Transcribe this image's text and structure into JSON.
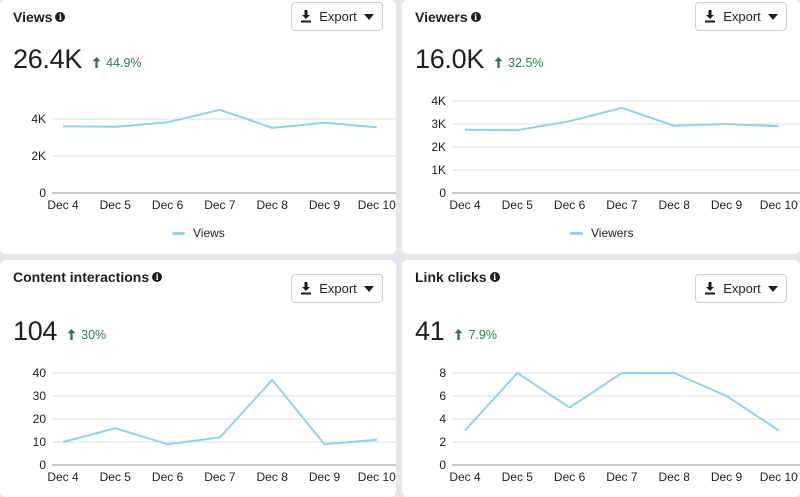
{
  "export_label": "Export",
  "colors": {
    "line": "#8fd2f2",
    "grid": "#dddfe2",
    "axis": "#8d949e",
    "up": "#2c7a49"
  },
  "cards": [
    {
      "title": "Views",
      "value": "26.4K",
      "delta": "44.9%",
      "legend": "Views",
      "chart_data": {
        "type": "line",
        "x": [
          "Dec 4",
          "Dec 5",
          "Dec 6",
          "Dec 7",
          "Dec 8",
          "Dec 9",
          "Dec 10"
        ],
        "series": [
          {
            "name": "Views",
            "values": [
              3600,
              3580,
              3820,
              4500,
              3520,
              3800,
              3550
            ]
          }
        ],
        "ylim": [
          0,
          4000
        ],
        "yticks": [
          {
            "v": 0,
            "label": "0"
          },
          {
            "v": 2000,
            "label": "2K"
          },
          {
            "v": 4000,
            "label": "4K"
          }
        ]
      }
    },
    {
      "title": "Viewers",
      "value": "16.0K",
      "delta": "32.5%",
      "legend": "Viewers",
      "chart_data": {
        "type": "line",
        "x": [
          "Dec 4",
          "Dec 5",
          "Dec 6",
          "Dec 7",
          "Dec 8",
          "Dec 9",
          "Dec 10"
        ],
        "series": [
          {
            "name": "Viewers",
            "values": [
              2750,
              2730,
              3120,
              3700,
              2920,
              3000,
              2900
            ]
          }
        ],
        "ylim": [
          0,
          4000
        ],
        "yticks": [
          {
            "v": 0,
            "label": "0"
          },
          {
            "v": 1000,
            "label": "1K"
          },
          {
            "v": 2000,
            "label": "2K"
          },
          {
            "v": 3000,
            "label": "3K"
          },
          {
            "v": 4000,
            "label": "4K"
          }
        ]
      }
    },
    {
      "title": "Content interactions",
      "value": "104",
      "delta": "30%",
      "legend": "",
      "chart_data": {
        "type": "line",
        "x": [
          "Dec 4",
          "Dec 5",
          "Dec 6",
          "Dec 7",
          "Dec 8",
          "Dec 9",
          "Dec 10"
        ],
        "series": [
          {
            "name": "Content interactions",
            "values": [
              10,
              16,
              9,
              12,
              37,
              9,
              11
            ]
          }
        ],
        "ylim": [
          0,
          40
        ],
        "yticks": [
          {
            "v": 0,
            "label": "0"
          },
          {
            "v": 10,
            "label": "10"
          },
          {
            "v": 20,
            "label": "20"
          },
          {
            "v": 30,
            "label": "30"
          },
          {
            "v": 40,
            "label": "40"
          }
        ]
      }
    },
    {
      "title": "Link clicks",
      "value": "41",
      "delta": "7.9%",
      "legend": "",
      "chart_data": {
        "type": "line",
        "x": [
          "Dec 4",
          "Dec 5",
          "Dec 6",
          "Dec 7",
          "Dec 8",
          "Dec 9",
          "Dec 10"
        ],
        "series": [
          {
            "name": "Link clicks",
            "values": [
              3,
              8,
              5,
              8,
              8,
              6,
              3
            ]
          }
        ],
        "ylim": [
          0,
          8
        ],
        "yticks": [
          {
            "v": 0,
            "label": "0"
          },
          {
            "v": 2,
            "label": "2"
          },
          {
            "v": 4,
            "label": "4"
          },
          {
            "v": 6,
            "label": "6"
          },
          {
            "v": 8,
            "label": "8"
          }
        ]
      }
    }
  ]
}
